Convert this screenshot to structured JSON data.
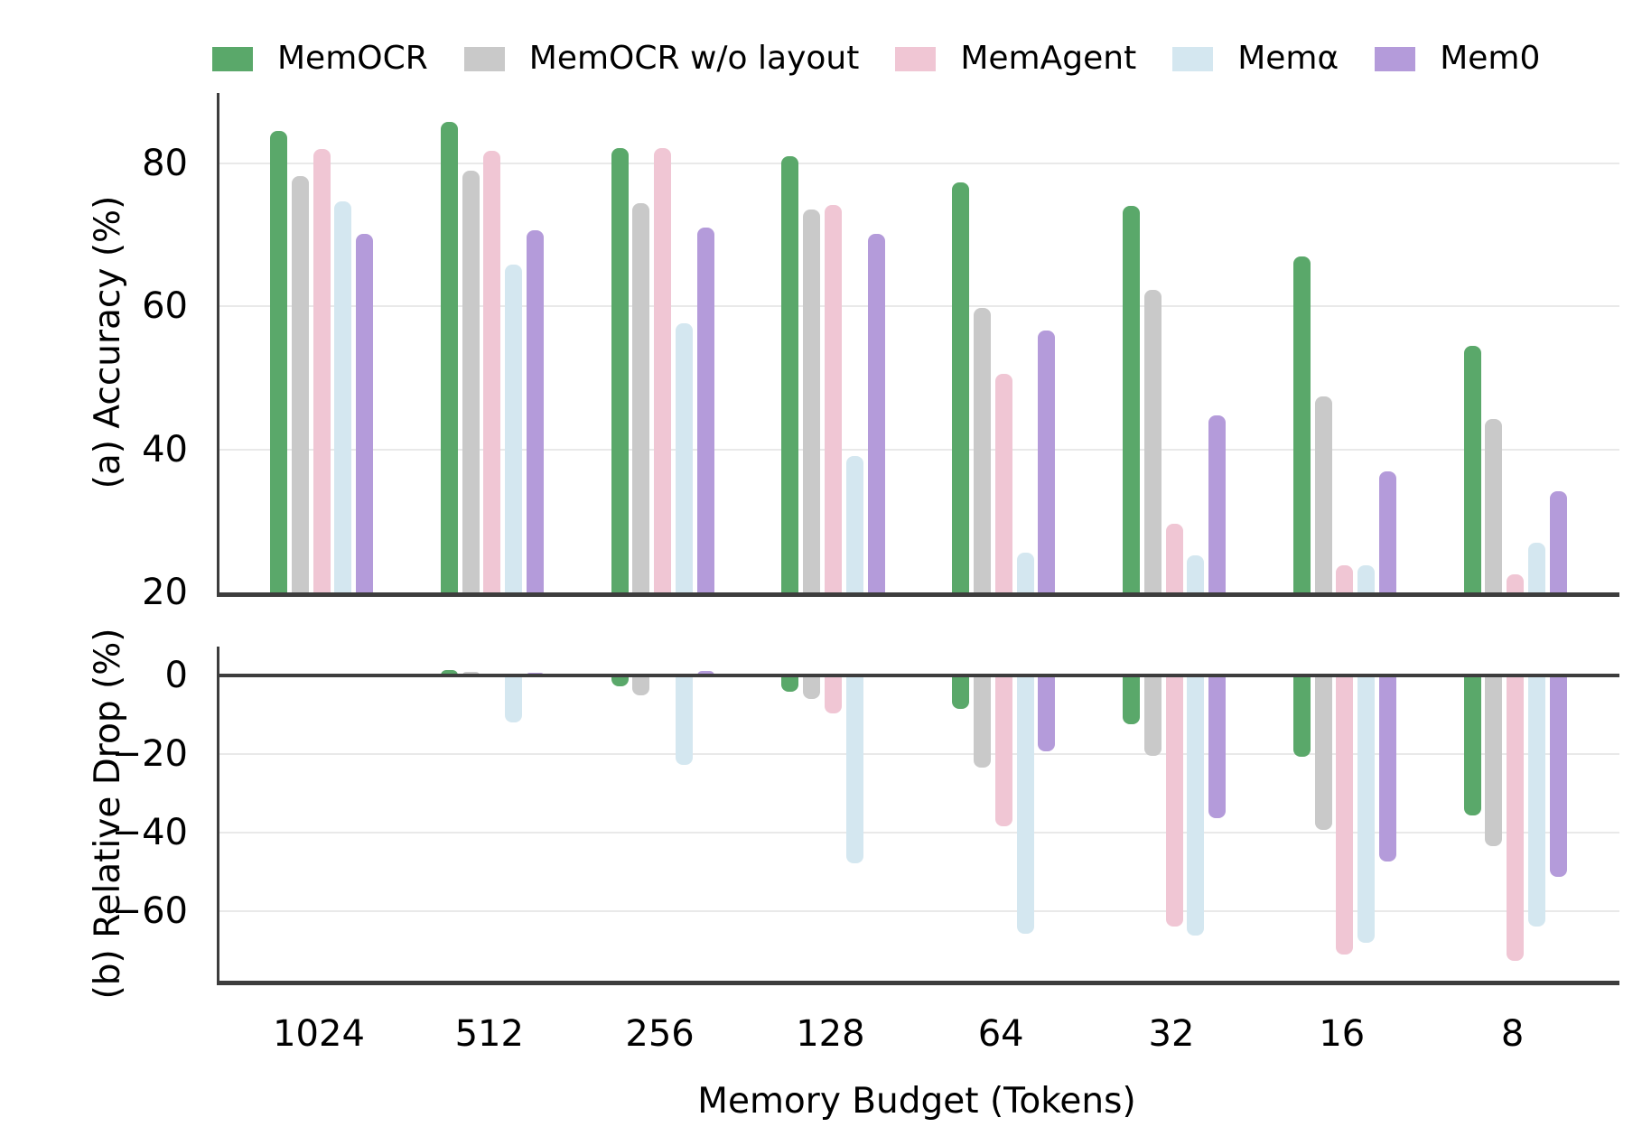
{
  "legend": {
    "items": [
      {
        "label": "MemOCR",
        "color": "#5aa86a"
      },
      {
        "label": "MemOCR w/o layout",
        "color": "#c9c9c9"
      },
      {
        "label": "MemAgent",
        "color": "#f0c6d4"
      },
      {
        "label": "Memα",
        "color": "#d4e7f0"
      },
      {
        "label": "Mem0",
        "color": "#b49bda"
      }
    ]
  },
  "xlabel": "Memory Budget (Tokens)",
  "chart_data": [
    {
      "type": "bar",
      "panel": "a",
      "ylabel": "(a) Accuracy (%)",
      "categories": [
        "1024",
        "512",
        "256",
        "128",
        "64",
        "32",
        "16",
        "8"
      ],
      "yticks": [
        80,
        60,
        40,
        20
      ],
      "ylim": [
        20,
        89.8
      ],
      "grid": true,
      "legend_position": "top",
      "series": [
        {
          "name": "MemOCR",
          "color": "#5aa86a",
          "values": [
            84.5,
            85.8,
            82.2,
            81.0,
            77.4,
            74.0,
            67.0,
            54.5
          ]
        },
        {
          "name": "MemOCR w/o layout",
          "color": "#c9c9c9",
          "values": [
            78.2,
            79.0,
            74.4,
            73.6,
            59.8,
            62.3,
            47.4,
            44.2
          ]
        },
        {
          "name": "MemAgent",
          "color": "#f0c6d4",
          "values": [
            82.0,
            81.8,
            82.2,
            74.2,
            50.6,
            29.6,
            23.8,
            22.5
          ]
        },
        {
          "name": "Memα",
          "color": "#d4e7f0",
          "values": [
            74.7,
            65.8,
            57.7,
            39.1,
            25.6,
            25.2,
            23.8,
            27.0
          ]
        },
        {
          "name": "Mem0",
          "color": "#b49bda",
          "values": [
            70.1,
            70.6,
            71.0,
            70.1,
            56.6,
            44.7,
            36.9,
            34.2
          ]
        }
      ]
    },
    {
      "type": "bar",
      "panel": "b",
      "ylabel": "(b) Relative Drop (%)",
      "categories": [
        "1024",
        "512",
        "256",
        "128",
        "64",
        "32",
        "16",
        "8"
      ],
      "yticks": [
        0,
        -20,
        -40,
        -60
      ],
      "ylim": [
        -77.7,
        7.4
      ],
      "grid": true,
      "series": [
        {
          "name": "MemOCR",
          "color": "#5aa86a",
          "values": [
            0.0,
            1.5,
            -2.7,
            -4.1,
            -8.4,
            -12.4,
            -20.7,
            -35.5
          ]
        },
        {
          "name": "MemOCR w/o layout",
          "color": "#c9c9c9",
          "values": [
            0.0,
            1.0,
            -4.9,
            -5.9,
            -23.5,
            -20.3,
            -39.4,
            -43.5
          ]
        },
        {
          "name": "MemAgent",
          "color": "#f0c6d4",
          "values": [
            0.0,
            -0.2,
            0.2,
            -9.5,
            -38.3,
            -63.9,
            -71.0,
            -72.6
          ]
        },
        {
          "name": "Memα",
          "color": "#d4e7f0",
          "values": [
            0.0,
            -11.9,
            -22.8,
            -47.7,
            -65.7,
            -66.3,
            -68.1,
            -63.9
          ]
        },
        {
          "name": "Mem0",
          "color": "#b49bda",
          "values": [
            0.0,
            0.7,
            1.3,
            0.0,
            -19.3,
            -36.2,
            -47.4,
            -51.2
          ]
        }
      ]
    }
  ]
}
